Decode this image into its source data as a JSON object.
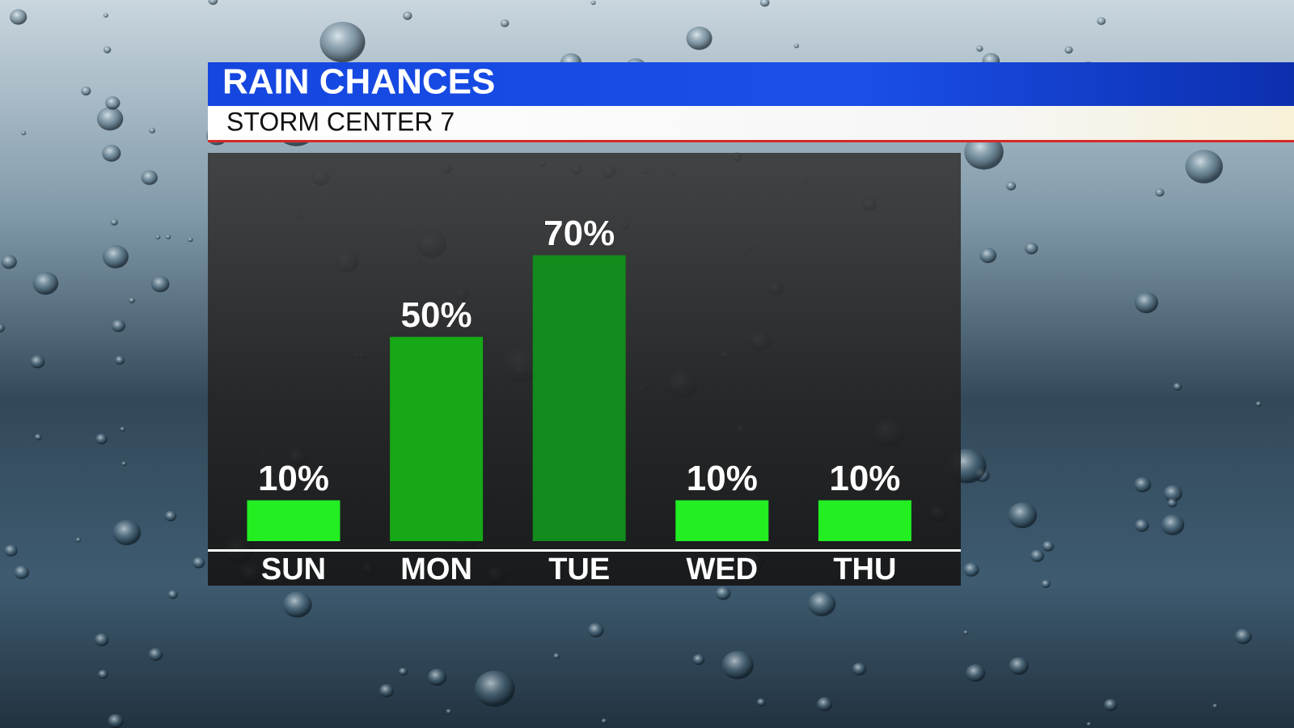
{
  "chart_data": {
    "type": "bar",
    "title": "RAIN CHANCES",
    "subtitle": "STORM CENTER 7",
    "categories": [
      "SUN",
      "MON",
      "TUE",
      "WED",
      "THU"
    ],
    "values": [
      10,
      50,
      70,
      10,
      10
    ],
    "value_labels": [
      "10%",
      "50%",
      "70%",
      "10%",
      "10%"
    ],
    "colors": [
      "#22ee22",
      "#16a816",
      "#128a1c",
      "#22ee22",
      "#22ee22"
    ]
  }
}
